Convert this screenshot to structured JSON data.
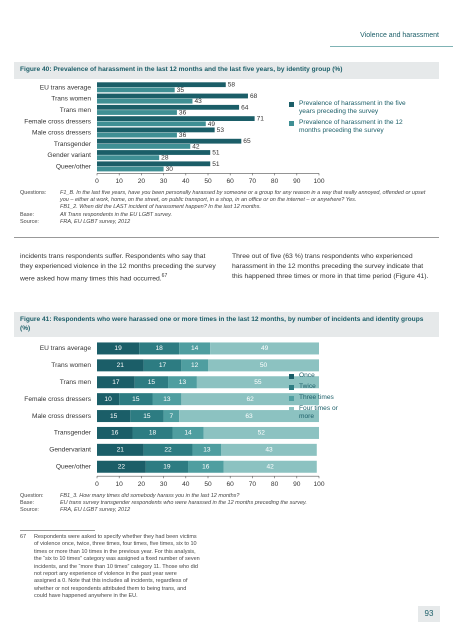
{
  "header": {
    "section": "Violence and harassment"
  },
  "chart_data": [
    {
      "type": "bar",
      "orientation": "horizontal",
      "stacked": false,
      "title": "Figure 40: Prevalence of harassment in the last 12 months and the last five years, by identity group (%)",
      "categories": [
        "EU trans average",
        "Trans women",
        "Trans men",
        "Female cross dressers",
        "Male cross dressers",
        "Transgender",
        "Gender variant",
        "Queer/other"
      ],
      "series": [
        {
          "name": "Prevalence of harassment in the five years preceding the survey",
          "color": "#1b5e68",
          "values": [
            58,
            68,
            64,
            71,
            53,
            65,
            51,
            51
          ]
        },
        {
          "name": "Prevalence of harassment in the 12 months preceding the survey",
          "color": "#3f8f94",
          "values": [
            35,
            43,
            36,
            49,
            36,
            42,
            28,
            30
          ]
        }
      ],
      "xlim": [
        0,
        100
      ],
      "xticks": [
        0,
        10,
        20,
        30,
        40,
        50,
        60,
        70,
        80,
        90,
        100
      ],
      "notes": [
        {
          "label": "Questions:",
          "text": [
            "F1_B. In the last five years, have you been personally harassed by someone or a group for any reason in a way that really annoyed, offended or upset you – either at work, home, on the street, on public transport, in a shop, in an office or on the internet – or anywhere? Yes.",
            "FB1_2. When did the LAST incident of harassment happen? In the last 12 months."
          ]
        },
        {
          "label": "Base:",
          "text": [
            "All Trans respondents in the EU LGBT survey."
          ]
        },
        {
          "label": "Source:",
          "text": [
            "FRA, EU LGBT survey, 2012"
          ]
        }
      ]
    },
    {
      "type": "bar",
      "orientation": "horizontal",
      "stacked": true,
      "title": "Figure 41: Respondents who were harassed one or more times in the last 12 months, by number of incidents and identity groups (%)",
      "categories": [
        "EU trans average",
        "Trans women",
        "Trans men",
        "Female cross dressers",
        "Male cross dressers",
        "Transgender",
        "Gendervariant",
        "Queer/other"
      ],
      "series": [
        {
          "name": "Once",
          "color": "#1b5e68",
          "values": [
            19,
            21,
            17,
            10,
            15,
            16,
            21,
            22
          ]
        },
        {
          "name": "Twice",
          "color": "#2d7c82",
          "values": [
            18,
            17,
            15,
            15,
            15,
            18,
            22,
            19
          ]
        },
        {
          "name": "Three times",
          "color": "#4f9ea0",
          "values": [
            14,
            12,
            13,
            13,
            7,
            14,
            13,
            16
          ]
        },
        {
          "name": "Four times or more",
          "color": "#8cc2c1",
          "values": [
            49,
            50,
            55,
            62,
            63,
            52,
            43,
            42
          ]
        }
      ],
      "xlim": [
        0,
        100
      ],
      "xticks": [
        0,
        10,
        20,
        30,
        40,
        50,
        60,
        70,
        80,
        90,
        100
      ],
      "notes": [
        {
          "label": "Question:",
          "text": [
            "FB1_3. How many times did somebody harass you in the last 12 months?"
          ]
        },
        {
          "label": "Base:",
          "text": [
            "EU trans survey transgender respondents who were harassed in the 12 months preceding the survey."
          ]
        },
        {
          "label": "Source:",
          "text": [
            "FRA, EU LGBT survey, 2012"
          ]
        }
      ]
    }
  ],
  "body": {
    "left": "incidents trans respondents suffer. Respondents who say that they experienced violence in the 12 months preceding the survey were asked how many times this had occurred.",
    "left_ref": "67",
    "right": "Three out of five (63 %) trans respondents who experienced harassment in the 12 months preceding the survey indicate that this happened three times or more in that time period (Figure 41)."
  },
  "footnote": {
    "number": "67",
    "text": "Respondents were asked to specify whether they had been victims of violence once, twice, three times, four times, five times, six to 10 times or more than 10 times in the previous year. For this analysis, the “six to 10 times” category was assigned a fixed number of seven incidents, and the “more than 10 times” category 11. Those who did not report any experience of violence in the past year were assigned a 0. Note that this includes all incidents, regardless of whether or not respondents attributed them to being trans, and could have happened anywhere in the EU."
  },
  "page_number": "93"
}
